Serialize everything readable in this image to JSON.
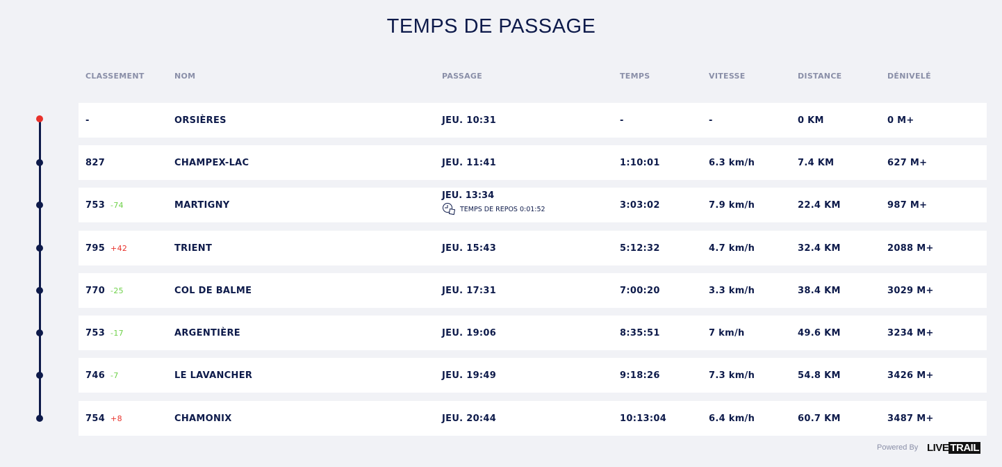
{
  "title": "TEMPS DE PASSAGE",
  "headers": {
    "rank": "CLASSEMENT",
    "name": "NOM",
    "passage": "PASSAGE",
    "time": "TEMPS",
    "speed": "VITESSE",
    "distance": "DISTANCE",
    "elevation": "DÉNIVELÉ"
  },
  "colors": {
    "start_dot": "#e8312b",
    "timeline": "#0d1a4a",
    "gain": "#6fd14a",
    "loss": "#e8312b"
  },
  "rows": [
    {
      "rank": "-",
      "delta": "",
      "name": "ORSIÈRES",
      "passage": "JEU. 10:31",
      "time": "-",
      "speed": "-",
      "distance": "0 KM",
      "elevation": "0 M+"
    },
    {
      "rank": "827",
      "delta": "",
      "name": "CHAMPEX-LAC",
      "passage": "JEU. 11:41",
      "time": "1:10:01",
      "speed": "6.3 km/h",
      "distance": "7.4 KM",
      "elevation": "627 M+"
    },
    {
      "rank": "753",
      "delta": "-74",
      "name": "MARTIGNY",
      "passage": "JEU. 13:34",
      "rest": "TEMPS DE REPOS 0:01:52",
      "time": "3:03:02",
      "speed": "7.9 km/h",
      "distance": "22.4 KM",
      "elevation": "987 M+"
    },
    {
      "rank": "795",
      "delta": "+42",
      "name": "TRIENT",
      "passage": "JEU. 15:43",
      "time": "5:12:32",
      "speed": "4.7 km/h",
      "distance": "32.4 KM",
      "elevation": "2088 M+"
    },
    {
      "rank": "770",
      "delta": "-25",
      "name": "COL DE BALME",
      "passage": "JEU. 17:31",
      "time": "7:00:20",
      "speed": "3.3 km/h",
      "distance": "38.4 KM",
      "elevation": "3029 M+"
    },
    {
      "rank": "753",
      "delta": "-17",
      "name": "ARGENTIÈRE",
      "passage": "JEU. 19:06",
      "time": "8:35:51",
      "speed": "7 km/h",
      "distance": "49.6 KM",
      "elevation": "3234 M+"
    },
    {
      "rank": "746",
      "delta": "-7",
      "name": "LE LAVANCHER",
      "passage": "JEU. 19:49",
      "time": "9:18:26",
      "speed": "7.3 km/h",
      "distance": "54.8 KM",
      "elevation": "3426 M+"
    },
    {
      "rank": "754",
      "delta": "+8",
      "name": "CHAMONIX",
      "passage": "JEU. 20:44",
      "time": "10:13:04",
      "speed": "6.4 km/h",
      "distance": "60.7 KM",
      "elevation": "3487 M+"
    }
  ],
  "footer": {
    "powered": "Powered By",
    "logo": "LIVETRAIL"
  }
}
